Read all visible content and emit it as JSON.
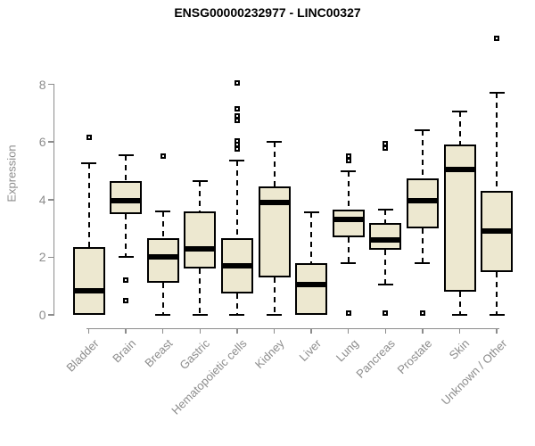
{
  "title": "ENSG00000232977 - LINC00327",
  "chart_data": {
    "type": "boxplot",
    "title": "ENSG00000232977 - LINC00327",
    "xlabel": "",
    "ylabel": "Expression",
    "ylim": [
      0,
      8
    ],
    "yticks": [
      0,
      2,
      4,
      6,
      8
    ],
    "grid": false,
    "categories": [
      "Bladder",
      "Brain",
      "Breast",
      "Gastric",
      "Hematopoietic cells",
      "Kidney",
      "Liver",
      "Lung",
      "Pancreas",
      "Prostate",
      "Skin",
      "Unknown / Other"
    ],
    "boxes": [
      {
        "category": "Bladder",
        "whisker_low": 0,
        "q1": 0,
        "median": 0.85,
        "q3": 2.35,
        "whisker_high": 5.25,
        "outliers": [
          6.15
        ]
      },
      {
        "category": "Brain",
        "whisker_low": 2.0,
        "q1": 3.5,
        "median": 3.95,
        "q3": 4.65,
        "whisker_high": 5.55,
        "outliers": [
          1.2,
          0.5
        ]
      },
      {
        "category": "Breast",
        "whisker_low": 0,
        "q1": 1.1,
        "median": 2.0,
        "q3": 2.65,
        "whisker_high": 3.6,
        "outliers": [
          5.5
        ]
      },
      {
        "category": "Gastric",
        "whisker_low": 0,
        "q1": 1.6,
        "median": 2.3,
        "q3": 3.6,
        "whisker_high": 4.65,
        "outliers": []
      },
      {
        "category": "Hematopoietic cells",
        "whisker_low": 0,
        "q1": 0.75,
        "median": 1.7,
        "q3": 2.65,
        "whisker_high": 5.35,
        "outliers": [
          8.05,
          7.15,
          6.9,
          6.75,
          6.05,
          5.9,
          5.75
        ]
      },
      {
        "category": "Kidney",
        "whisker_low": 0,
        "q1": 1.3,
        "median": 3.9,
        "q3": 4.45,
        "whisker_high": 6.0,
        "outliers": []
      },
      {
        "category": "Liver",
        "whisker_low": 0,
        "q1": 0,
        "median": 1.05,
        "q3": 1.8,
        "whisker_high": 3.55,
        "outliers": []
      },
      {
        "category": "Lung",
        "whisker_low": 1.8,
        "q1": 2.7,
        "median": 3.3,
        "q3": 3.65,
        "whisker_high": 5.0,
        "outliers": [
          5.5,
          5.35,
          0.05
        ]
      },
      {
        "category": "Pancreas",
        "whisker_low": 1.05,
        "q1": 2.25,
        "median": 2.6,
        "q3": 3.2,
        "whisker_high": 3.65,
        "outliers": [
          5.95,
          5.8,
          0.05
        ]
      },
      {
        "category": "Prostate",
        "whisker_low": 1.8,
        "q1": 3.0,
        "median": 3.95,
        "q3": 4.75,
        "whisker_high": 6.4,
        "outliers": [
          0.05
        ]
      },
      {
        "category": "Skin",
        "whisker_low": 0,
        "q1": 0.8,
        "median": 5.05,
        "q3": 5.9,
        "whisker_high": 7.05,
        "outliers": []
      },
      {
        "category": "Unknown / Other",
        "whisker_low": 0,
        "q1": 1.5,
        "median": 2.9,
        "q3": 4.3,
        "whisker_high": 7.7,
        "outliers": [
          9.6
        ]
      }
    ],
    "colors": {
      "box_fill": "#EDE8D0",
      "box_border": "#000000",
      "axis": "#8c8c8c",
      "tick_label": "#8c8c8c",
      "title": "#000000"
    }
  }
}
